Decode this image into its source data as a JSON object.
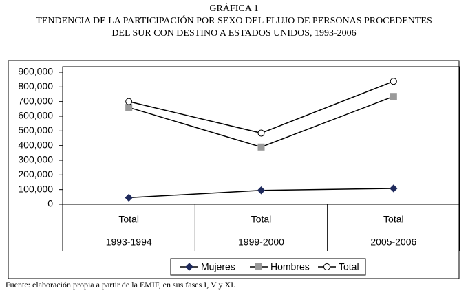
{
  "chart_data": {
    "type": "line",
    "title": "GRÁFICA 1",
    "subtitle": [
      "TENDENCIA DE LA PARTICIPACIÓN POR SEXO DEL FLUJO DE PERSONAS PROCEDENTES",
      "DEL SUR CON DESTINO A ESTADOS UNIDOS, 1993-2006"
    ],
    "categories": [
      "Total",
      "Total",
      "Total"
    ],
    "groups": [
      "1993-1994",
      "1999-2000",
      "2005-2006"
    ],
    "series": [
      {
        "name": "Mujeres",
        "color": "#1f2a5c",
        "marker": "diamond",
        "values": [
          45000,
          95000,
          108000
        ]
      },
      {
        "name": "Hombres",
        "color": "#9a9a9a",
        "marker": "square",
        "values": [
          660000,
          390000,
          735000
        ]
      },
      {
        "name": "Total",
        "color": "#ffffff",
        "marker": "circle",
        "values": [
          700000,
          485000,
          838000
        ]
      }
    ],
    "ylim": [
      0,
      900000
    ],
    "yticks": [
      0,
      {
        "value": 100000,
        "label": "100,000"
      },
      {
        "value": 200000,
        "label": "200,000"
      },
      {
        "value": 300000,
        "label": "300,000"
      },
      {
        "value": 400000,
        "label": "400,000"
      },
      {
        "value": 500000,
        "label": "500,000"
      },
      {
        "value": 600000,
        "label": "600,000"
      },
      {
        "value": 700000,
        "label": "700,000"
      },
      {
        "value": 800000,
        "label": "800,000"
      },
      {
        "value": 900000,
        "label": "900,000"
      }
    ],
    "legend": "bottom",
    "source": "Fuente: elaboración propia a partir de la EMIF, en sus fases I, V y XI."
  }
}
